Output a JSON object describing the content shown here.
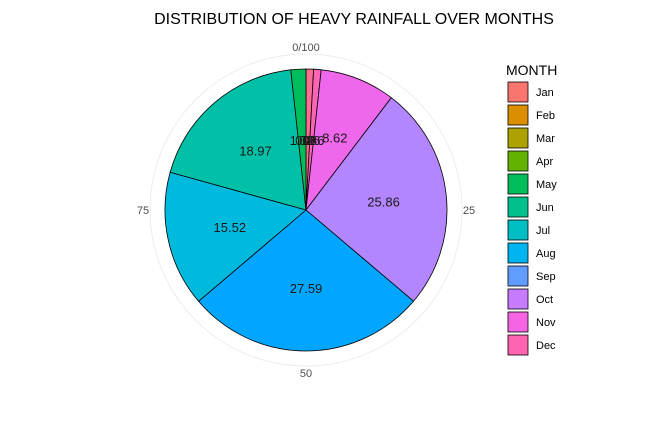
{
  "chart_data": {
    "type": "pie",
    "title": "DISTRIBUTION OF HEAVY RAINFALL OVER MONTHS",
    "legend_title": "MONTH",
    "legend_position": "right",
    "angular_axis": {
      "ticks": [
        {
          "value": 0,
          "label": "0/100"
        },
        {
          "value": 25,
          "label": "25"
        },
        {
          "value": 50,
          "label": "50"
        },
        {
          "value": 75,
          "label": "75"
        }
      ],
      "range": [
        0,
        100
      ],
      "direction": "clockwise",
      "start": "top"
    },
    "slices": [
      {
        "label": "Jan",
        "value": 0.0,
        "value_label": "0",
        "color": "#F8766D"
      },
      {
        "label": "Feb",
        "value": 0.0,
        "value_label": "0",
        "color": "#DB8E00"
      },
      {
        "label": "Mar",
        "value": 0.0,
        "value_label": "0",
        "color": "#AEA200"
      },
      {
        "label": "Apr",
        "value": 0.0,
        "value_label": "0",
        "color": "#64B200"
      },
      {
        "label": "May",
        "value": 1.72,
        "value_label": "1.72",
        "color": "#00BD5C"
      },
      {
        "label": "Jun",
        "value": 18.97,
        "value_label": "18.97",
        "color": "#00C1A7"
      },
      {
        "label": "Jul",
        "value": 15.52,
        "value_label": "15.52",
        "color": "#00BADE"
      },
      {
        "label": "Aug",
        "value": 27.59,
        "value_label": "27.59",
        "color": "#00A6FF"
      },
      {
        "label": "Sep",
        "value": 25.86,
        "value_label": "25.86",
        "color": "#B385FF"
      },
      {
        "label": "Oct",
        "value": 8.62,
        "value_label": "8.62",
        "color": "#EF67EB"
      },
      {
        "label": "Nov",
        "value": 0.86,
        "value_label": "0.86",
        "color": "#FF63B6"
      },
      {
        "label": "Dec",
        "value": 0.86,
        "value_label": "0.86",
        "color": "#FF6C91"
      }
    ],
    "legend_order": [
      "Jan",
      "Feb",
      "Mar",
      "Apr",
      "May",
      "Jun",
      "Jul",
      "Aug",
      "Sep",
      "Oct",
      "Nov",
      "Dec"
    ],
    "legend_colors": [
      "#F8766D",
      "#DB8E00",
      "#AEA200",
      "#64B200",
      "#00BD5C",
      "#00C08B",
      "#00BFC4",
      "#00B4F0",
      "#619CFF",
      "#C77CFF",
      "#F564E3",
      "#FF64B0"
    ]
  }
}
